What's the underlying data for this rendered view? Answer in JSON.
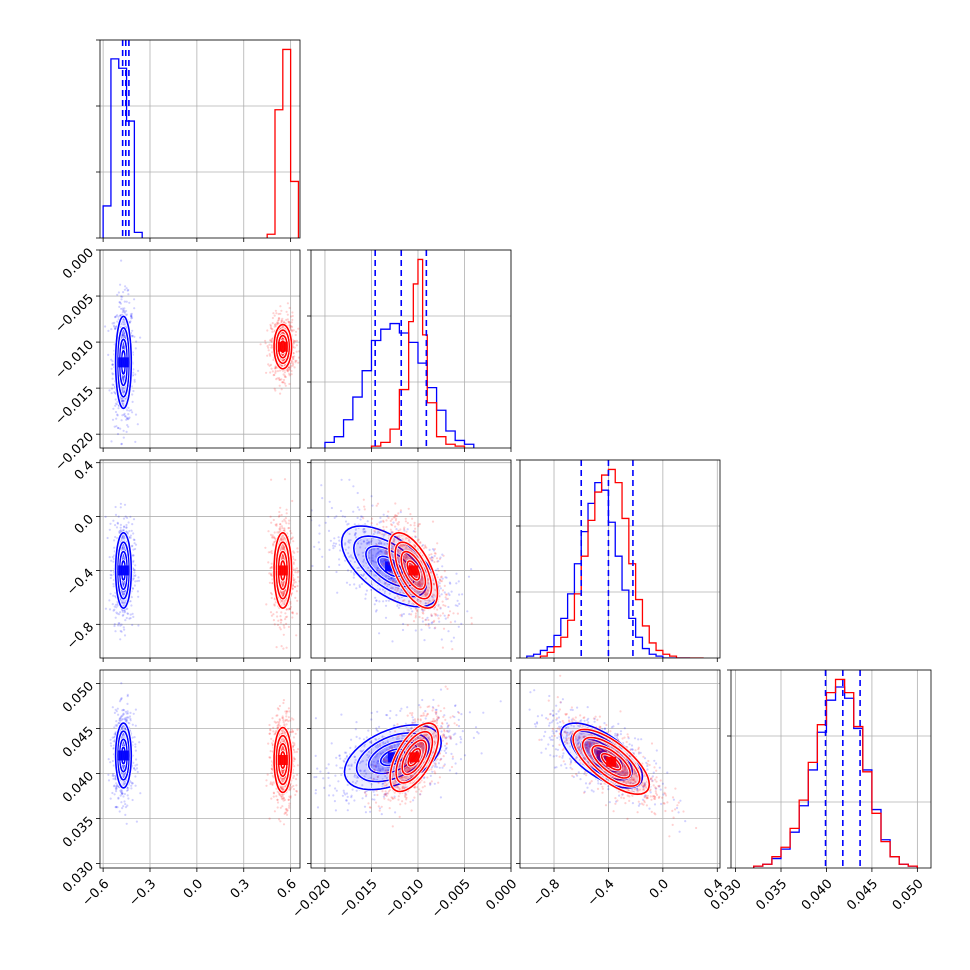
{
  "chart_data": {
    "type": "corner",
    "series": [
      {
        "color": "#0000ff"
      },
      {
        "color": "#ff0000"
      }
    ],
    "parameters": [
      {
        "index": 0,
        "range": [
          -0.62,
          0.66
        ],
        "ticks": [
          "-0.6",
          "-0.3",
          "0.0",
          "0.3",
          "0.6"
        ],
        "tick_values": [
          -0.6,
          -0.3,
          0.0,
          0.3,
          0.6
        ]
      },
      {
        "index": 1,
        "range": [
          -0.0215,
          0.0
        ],
        "ticks": [
          "-0.020",
          "-0.015",
          "-0.010",
          "-0.005",
          "0.000"
        ],
        "tick_values": [
          -0.02,
          -0.015,
          -0.01,
          -0.005,
          0.0
        ]
      },
      {
        "index": 2,
        "range": [
          -1.05,
          0.42
        ],
        "ticks": [
          "-0.8",
          "-0.4",
          "0.0",
          "0.4"
        ],
        "tick_values": [
          -0.8,
          -0.4,
          0.0,
          0.4
        ]
      },
      {
        "index": 3,
        "range": [
          0.0295,
          0.0515
        ],
        "ticks": [
          "0.030",
          "0.035",
          "0.040",
          "0.045",
          "0.050"
        ],
        "tick_values": [
          0.03,
          0.035,
          0.04,
          0.045,
          0.05
        ]
      }
    ],
    "histograms": [
      {
        "param": 0,
        "blue": {
          "edges": [
            -0.6,
            -0.55,
            -0.5,
            -0.45,
            -0.4,
            -0.35
          ],
          "counts": [
            0.17,
            0.95,
            0.9,
            0.62,
            0.03
          ]
        },
        "red": {
          "edges": [
            0.45,
            0.5,
            0.55,
            0.6,
            0.65
          ],
          "counts": [
            0.02,
            0.68,
            1.0,
            0.3
          ]
        },
        "quantiles": [
          -0.475,
          -0.455,
          -0.435
        ]
      },
      {
        "param": 1,
        "blue": {
          "edges": [
            -0.02,
            -0.019,
            -0.018,
            -0.017,
            -0.016,
            -0.015,
            -0.014,
            -0.013,
            -0.012,
            -0.011,
            -0.01,
            -0.009,
            -0.008,
            -0.007,
            -0.006,
            -0.005,
            -0.004
          ],
          "counts": [
            0.03,
            0.06,
            0.15,
            0.27,
            0.41,
            0.57,
            0.63,
            0.66,
            0.61,
            0.56,
            0.45,
            0.32,
            0.2,
            0.09,
            0.04,
            0.02
          ]
        },
        "red": {
          "edges": [
            -0.015,
            -0.014,
            -0.013,
            -0.012,
            -0.011,
            -0.0105,
            -0.01,
            -0.0095,
            -0.009,
            -0.008,
            -0.007,
            -0.006,
            -0.005
          ],
          "counts": [
            0.01,
            0.03,
            0.1,
            0.31,
            0.67,
            0.87,
            1.0,
            0.6,
            0.24,
            0.06,
            0.02,
            0.01
          ]
        },
        "quantiles": [
          -0.0146,
          -0.0118,
          -0.0091
        ]
      },
      {
        "param": 2,
        "blue": {
          "edges": [
            -1.0,
            -0.95,
            -0.9,
            -0.85,
            -0.8,
            -0.75,
            -0.7,
            -0.65,
            -0.6,
            -0.55,
            -0.5,
            -0.45,
            -0.4,
            -0.35,
            -0.3,
            -0.25,
            -0.2,
            -0.15,
            -0.1,
            -0.05,
            0.0,
            0.05,
            0.1,
            0.15,
            0.2
          ],
          "counts": [
            0.01,
            0.02,
            0.04,
            0.06,
            0.12,
            0.21,
            0.34,
            0.5,
            0.67,
            0.82,
            0.93,
            0.89,
            0.72,
            0.54,
            0.36,
            0.21,
            0.11,
            0.05,
            0.02,
            0.01,
            0.0,
            0.0,
            0.0,
            0.0
          ]
        },
        "red": {
          "edges": [
            -0.9,
            -0.85,
            -0.8,
            -0.75,
            -0.7,
            -0.65,
            -0.6,
            -0.55,
            -0.5,
            -0.45,
            -0.4,
            -0.35,
            -0.3,
            -0.25,
            -0.2,
            -0.15,
            -0.1,
            -0.05,
            0.0,
            0.05,
            0.1,
            0.15,
            0.2,
            0.3
          ],
          "counts": [
            0.01,
            0.03,
            0.06,
            0.11,
            0.2,
            0.34,
            0.54,
            0.73,
            0.88,
            0.97,
            1.0,
            0.93,
            0.74,
            0.5,
            0.31,
            0.17,
            0.08,
            0.04,
            0.02,
            0.01,
            0.0,
            0.0,
            0.0
          ]
        },
        "quantiles": [
          -0.6,
          -0.4,
          -0.22
        ]
      },
      {
        "param": 3,
        "blue": {
          "edges": [
            0.032,
            0.033,
            0.034,
            0.035,
            0.036,
            0.037,
            0.038,
            0.039,
            0.04,
            0.041,
            0.042,
            0.043,
            0.044,
            0.045,
            0.046,
            0.047,
            0.048,
            0.049,
            0.05
          ],
          "counts": [
            0.01,
            0.02,
            0.05,
            0.1,
            0.19,
            0.33,
            0.52,
            0.72,
            0.89,
            0.96,
            0.9,
            0.74,
            0.52,
            0.31,
            0.15,
            0.06,
            0.02,
            0.01
          ]
        },
        "red": {
          "edges": [
            0.032,
            0.033,
            0.034,
            0.035,
            0.036,
            0.037,
            0.038,
            0.039,
            0.04,
            0.041,
            0.042,
            0.043,
            0.044,
            0.045,
            0.046,
            0.047,
            0.048,
            0.049,
            0.05
          ],
          "counts": [
            0.01,
            0.02,
            0.06,
            0.11,
            0.21,
            0.36,
            0.56,
            0.76,
            0.93,
            1.0,
            0.93,
            0.75,
            0.51,
            0.29,
            0.14,
            0.06,
            0.02,
            0.01
          ]
        },
        "quantiles": [
          0.0399,
          0.0418,
          0.0437
        ]
      }
    ],
    "pairs": [
      {
        "x": 0,
        "y": 1,
        "blue": {
          "mean": [
            -0.47,
            -0.0122
          ],
          "sd": [
            0.025,
            0.0025
          ],
          "rho": 0.0
        },
        "red": {
          "mean": [
            0.55,
            -0.0105
          ],
          "sd": [
            0.028,
            0.0012
          ],
          "rho": 0.0
        }
      },
      {
        "x": 0,
        "y": 2,
        "blue": {
          "mean": [
            -0.47,
            -0.4
          ],
          "sd": [
            0.025,
            0.14
          ],
          "rho": 0.0
        },
        "red": {
          "mean": [
            0.55,
            -0.4
          ],
          "sd": [
            0.028,
            0.14
          ],
          "rho": 0.0
        }
      },
      {
        "x": 0,
        "y": 3,
        "blue": {
          "mean": [
            -0.47,
            0.042
          ],
          "sd": [
            0.025,
            0.0018
          ],
          "rho": 0.0
        },
        "red": {
          "mean": [
            0.55,
            0.0415
          ],
          "sd": [
            0.028,
            0.0018
          ],
          "rho": 0.0
        }
      },
      {
        "x": 1,
        "y": 2,
        "blue": {
          "mean": [
            -0.013,
            -0.37
          ],
          "sd": [
            0.0026,
            0.15
          ],
          "rho": -0.6
        },
        "red": {
          "mean": [
            -0.0105,
            -0.4
          ],
          "sd": [
            0.0013,
            0.14
          ],
          "rho": -0.6
        }
      },
      {
        "x": 1,
        "y": 3,
        "blue": {
          "mean": [
            -0.0127,
            0.0418
          ],
          "sd": [
            0.0026,
            0.0018
          ],
          "rho": 0.45
        },
        "red": {
          "mean": [
            -0.0104,
            0.0418
          ],
          "sd": [
            0.0013,
            0.0019
          ],
          "rho": 0.6
        }
      },
      {
        "x": 2,
        "y": 3,
        "blue": {
          "mean": [
            -0.45,
            0.042
          ],
          "sd": [
            0.15,
            0.0018
          ],
          "rho": -0.65
        },
        "red": {
          "mean": [
            -0.38,
            0.0413
          ],
          "sd": [
            0.14,
            0.0018
          ],
          "rho": -0.7
        }
      }
    ],
    "contour_levels_sigma": [
      0.5,
      1.0,
      1.5,
      2.0
    ],
    "grid": true
  }
}
